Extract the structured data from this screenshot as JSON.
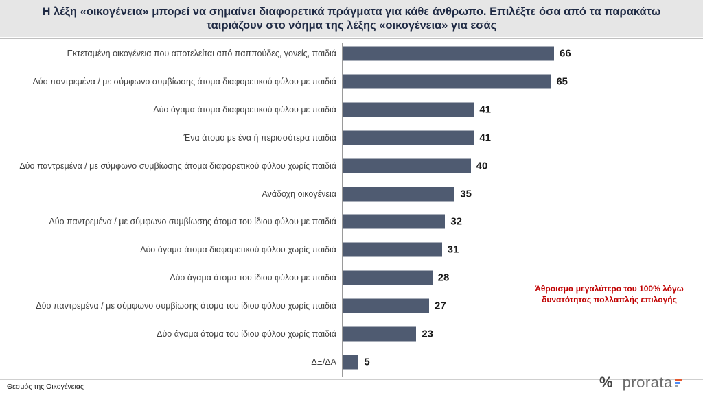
{
  "header": {
    "title": "Η λέξη «οικογένεια» μπορεί να σημαίνει διαφορετικά πράγματα για κάθε άνθρωπο. Επιλέξτε όσα από τα παρακάτω ταιριάζουν στο νόημα της λέξης «οικογένεια» για εσάς"
  },
  "chart_data": {
    "type": "bar",
    "orientation": "horizontal",
    "categories": [
      "Εκτεταμένη οικογένεια που αποτελείται από παππούδες, γονείς, παιδιά",
      "Δύο παντρεμένα / με σύμφωνο συμβίωσης άτομα διαφορετικού φύλου με παιδιά",
      "Δύο άγαμα άτομα διαφορετικού φύλου με παιδιά",
      "Ένα άτομο με ένα ή περισσότερα παιδιά",
      "Δύο παντρεμένα / με σύμφωνο συμβίωσης άτομα διαφορετικού φύλου χωρίς παιδιά",
      "Ανάδοχη οικογένεια",
      "Δύο παντρεμένα / με σύμφωνο συμβίωσης άτομα του ίδιου φύλου με παιδιά",
      "Δύο άγαμα άτομα διαφορετικού φύλου χωρίς παιδιά",
      "Δύο άγαμα άτομα του ίδιου φύλου με παιδιά",
      "Δύο παντρεμένα / με σύμφωνο συμβίωσης άτομα του ίδιου φύλου χωρίς παιδιά",
      "Δύο άγαμα άτομα του ίδιου φύλου χωρίς παιδιά",
      "ΔΞ/ΔΑ"
    ],
    "values": [
      66,
      65,
      41,
      41,
      40,
      35,
      32,
      31,
      28,
      27,
      23,
      5
    ],
    "bar_color": "#4f5b71",
    "xlim": [
      0,
      100
    ],
    "grid": false,
    "legend": "none"
  },
  "note": "Άθροισμα μεγαλύτερο του 100% λόγω δυνατότητας πολλαπλής επιλογής",
  "footer": {
    "source": "Θεσμός της Οικογένειας",
    "logo_symbol": "%",
    "logo_text": "prorata",
    "logo_colors": [
      "#e4572e",
      "#4c8bf5",
      "#9aa0a6"
    ]
  }
}
